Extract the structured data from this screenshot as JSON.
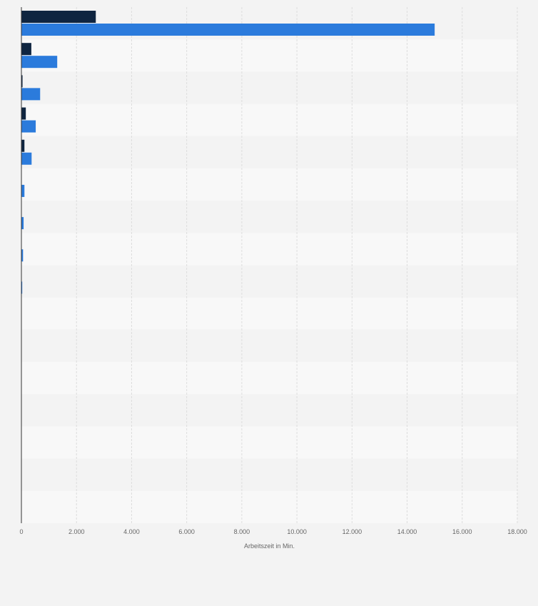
{
  "colors": {
    "background": "#f3f3f3",
    "band_light": "#f8f8f8",
    "band_dark": "#f3f3f3",
    "gridline": "#dddddd",
    "axis": "#333333",
    "series_dark": "#0f2540",
    "series_blue": "#2b7bdc",
    "label": "#666666"
  },
  "chart_data": {
    "type": "bar",
    "orientation": "horizontal",
    "xlabel": "Arbeitszeit in Min.",
    "xlim": [
      0,
      18000
    ],
    "x_ticks": [
      {
        "value": 0,
        "label": "0"
      },
      {
        "value": 2000,
        "label": "2.000"
      },
      {
        "value": 4000,
        "label": "4.000"
      },
      {
        "value": 6000,
        "label": "6.000"
      },
      {
        "value": 8000,
        "label": "8.000"
      },
      {
        "value": 10000,
        "label": "10.000"
      },
      {
        "value": 12000,
        "label": "12.000"
      },
      {
        "value": 14000,
        "label": "14.000"
      },
      {
        "value": 16000,
        "label": "16.000"
      },
      {
        "value": 18000,
        "label": "18.000"
      }
    ],
    "grid": true,
    "legend": "none",
    "category_count": 16,
    "series": [
      {
        "color": "#0f2540",
        "values": [
          2700,
          360,
          40,
          160,
          110,
          0,
          0,
          0,
          0,
          0,
          0,
          0,
          0,
          0,
          0,
          0
        ]
      },
      {
        "color": "#2b7bdc",
        "values": [
          15000,
          1300,
          680,
          520,
          370,
          110,
          80,
          60,
          30,
          0,
          0,
          0,
          0,
          0,
          0,
          0
        ]
      }
    ]
  }
}
